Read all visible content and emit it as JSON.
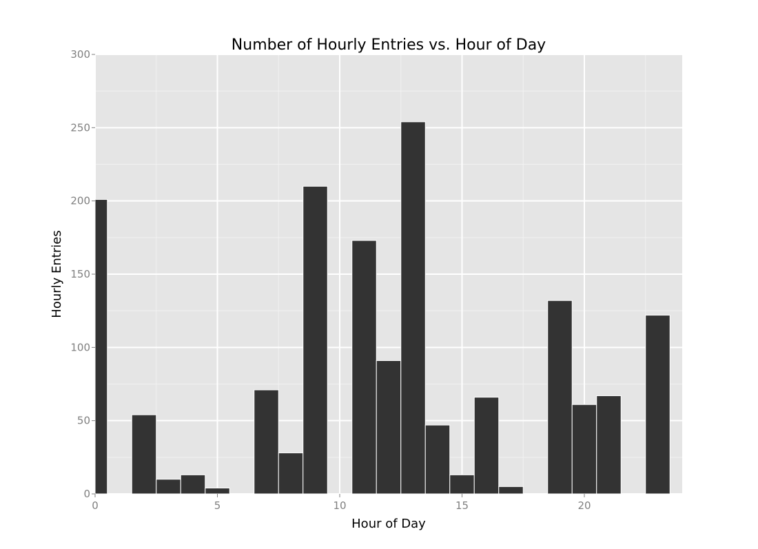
{
  "chart_data": {
    "type": "bar",
    "title": "Number of Hourly Entries vs. Hour of Day",
    "xlabel": "Hour of Day",
    "ylabel": "Hourly Entries",
    "xlim": [
      0,
      24
    ],
    "ylim": [
      0,
      300
    ],
    "x_ticks": [
      0,
      5,
      10,
      15,
      20
    ],
    "y_ticks": [
      0,
      50,
      100,
      150,
      200,
      250,
      300
    ],
    "grid": true,
    "bar_color": "#333333",
    "bar_edge_color": "#ffffff",
    "panel_color": "#e5e5e5",
    "grid_color": "#ffffff",
    "bin_width": 1,
    "x": [
      0,
      2,
      3,
      4,
      5,
      7,
      8,
      9,
      11,
      12,
      13,
      14,
      15,
      16,
      17,
      19,
      20,
      21,
      23
    ],
    "values": [
      201,
      54,
      10,
      13,
      4,
      71,
      28,
      210,
      173,
      91,
      254,
      47,
      13,
      66,
      5,
      132,
      61,
      67,
      122
    ]
  }
}
